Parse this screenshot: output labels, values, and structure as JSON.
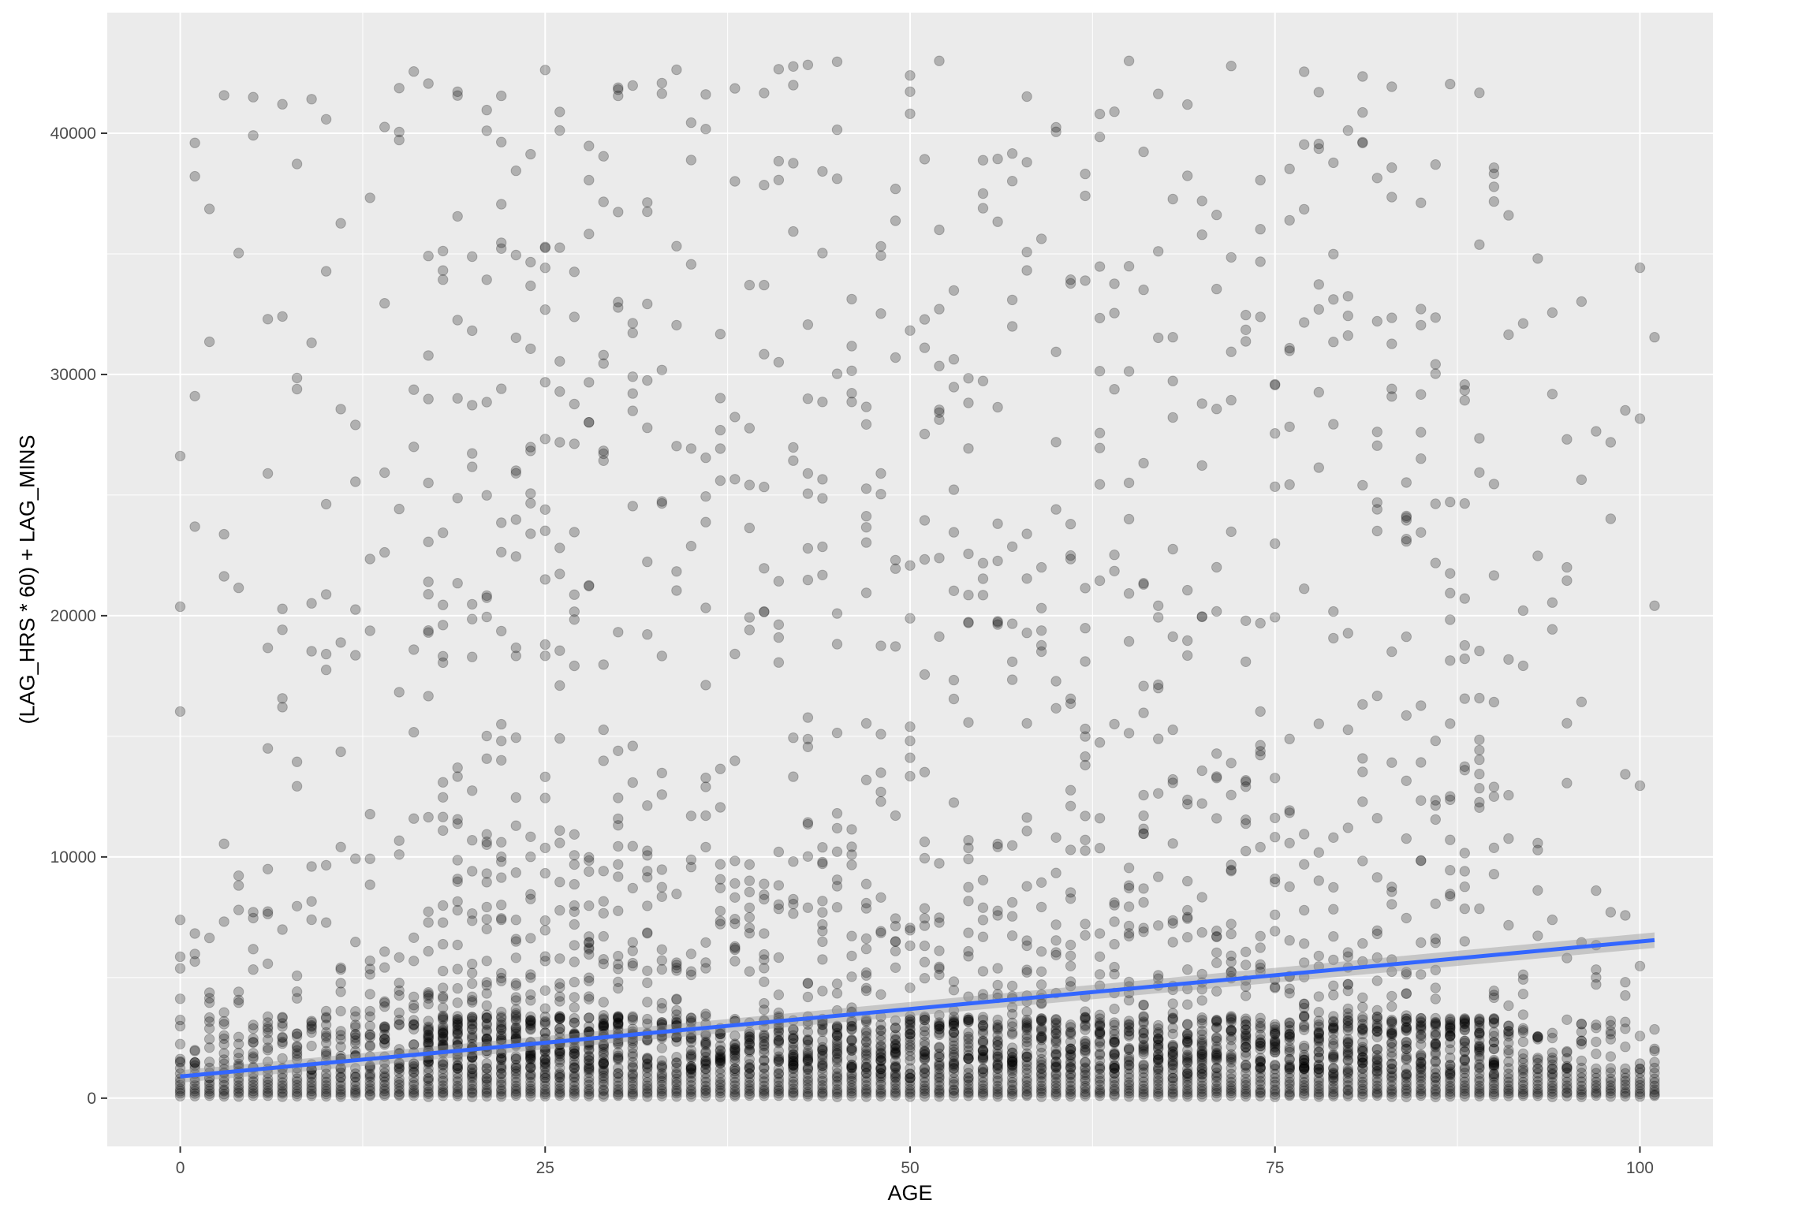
{
  "chart_data": {
    "type": "scatter",
    "title": "",
    "xlabel": "AGE",
    "ylabel": "(LAG_HRS * 60) + LAG_MINS",
    "xlim": [
      -5,
      105
    ],
    "ylim": [
      -2000,
      45000
    ],
    "x_ticks": [
      0,
      25,
      50,
      75,
      100
    ],
    "y_ticks": [
      0,
      10000,
      20000,
      30000,
      40000
    ],
    "grid": true,
    "legend": "none",
    "point_color": "#000000",
    "point_alpha": 0.25,
    "panel_background": "#ebebeb",
    "grid_color": "#ffffff",
    "trend_line": {
      "method": "lm",
      "color": "#3366ff",
      "band_color": "#999999",
      "x": [
        0,
        101
      ],
      "y": [
        900,
        6550
      ]
    },
    "point_generation": {
      "x_min": 0,
      "x_max": 101,
      "ages_sparse": [
        0,
        1,
        2,
        3,
        4,
        5,
        6,
        7,
        8,
        9,
        10,
        11,
        12,
        13,
        14
      ],
      "dense_rows_y": [
        50,
        150,
        250,
        350,
        500,
        650,
        800,
        1000,
        1200
      ],
      "approx_points": 4000
    }
  }
}
